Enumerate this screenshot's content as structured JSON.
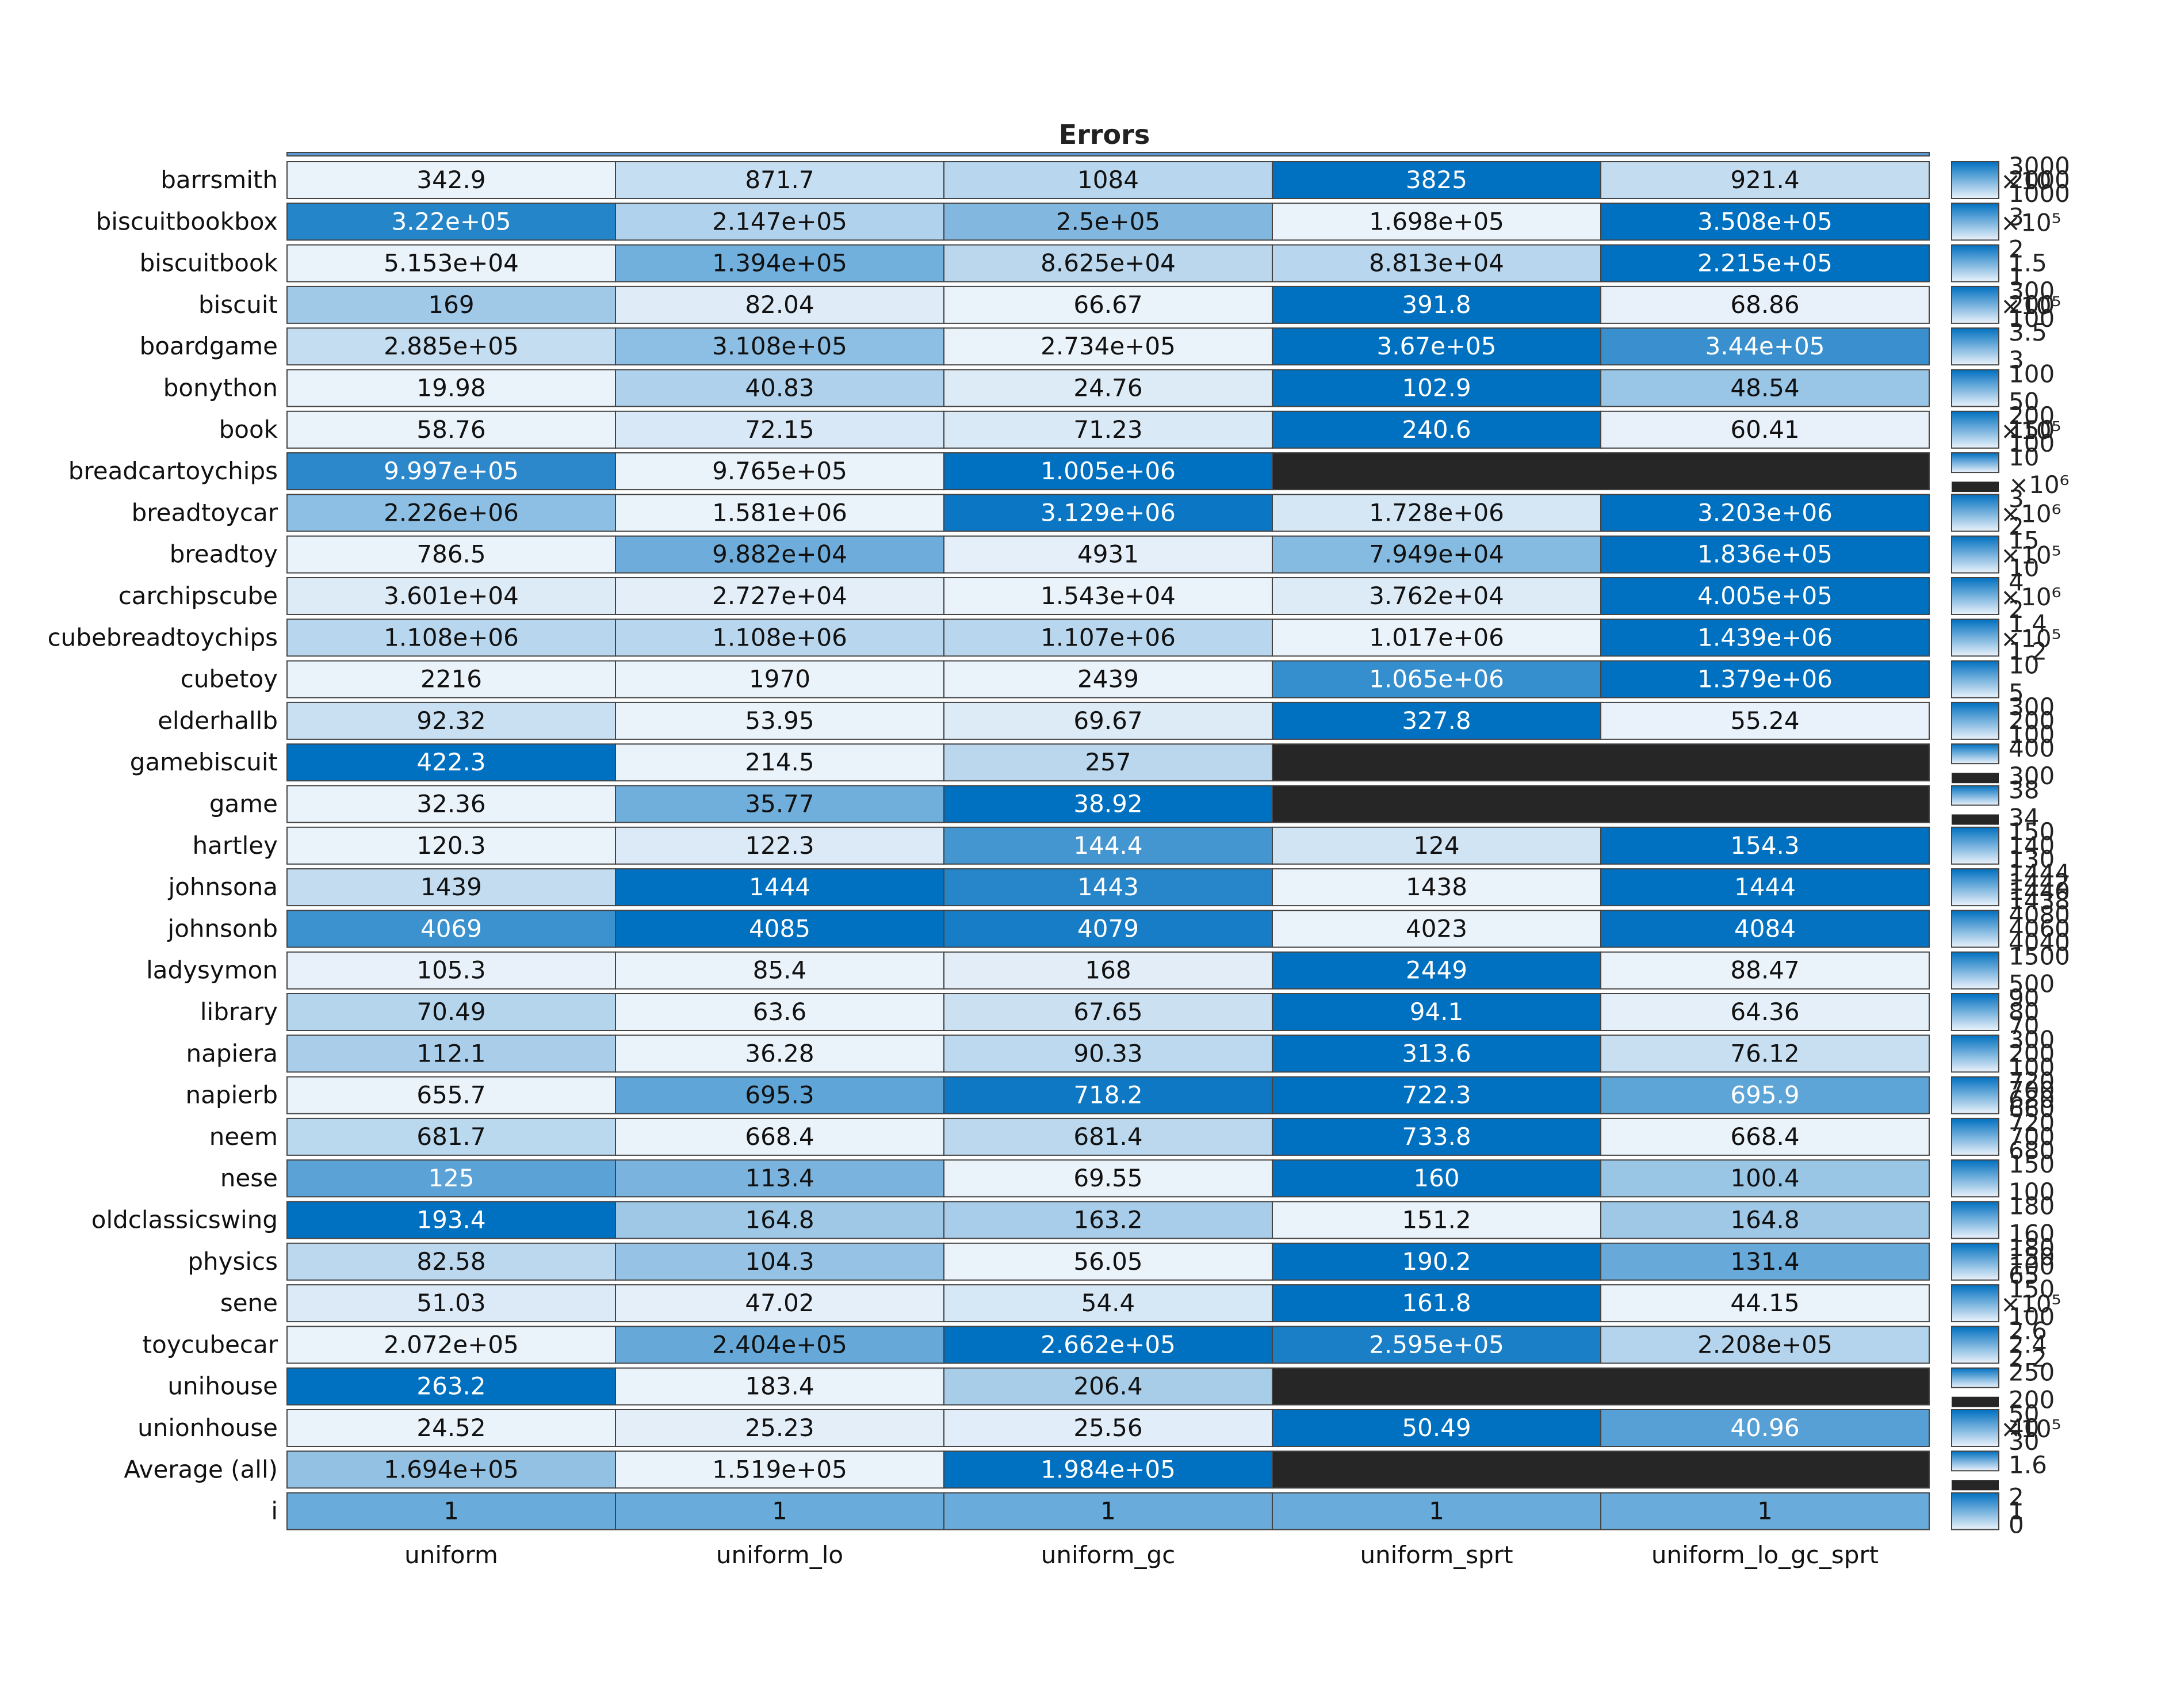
{
  "chart_data": {
    "type": "heatmap",
    "title": "Errors",
    "columns": [
      "uniform",
      "uniform_lo",
      "uniform_gc",
      "uniform_sprt",
      "uniform_lo_gc_sprt"
    ],
    "rows": [
      {
        "name": "barrsmith",
        "values": [
          342.9,
          871.7,
          1084,
          3825,
          921.4
        ],
        "labels": [
          "342.9",
          "871.7",
          "1084",
          "3825",
          "921.4"
        ]
      },
      {
        "name": "biscuitbookbox",
        "values": [
          322000,
          214700,
          250000,
          169800,
          350800
        ],
        "labels": [
          "3.22e+05",
          "2.147e+05",
          "2.5e+05",
          "1.698e+05",
          "3.508e+05"
        ]
      },
      {
        "name": "biscuitbook",
        "values": [
          51530,
          139400,
          86250,
          88130,
          221500
        ],
        "labels": [
          "5.153e+04",
          "1.394e+05",
          "8.625e+04",
          "8.813e+04",
          "2.215e+05"
        ]
      },
      {
        "name": "biscuit",
        "values": [
          169,
          82.04,
          66.67,
          391.8,
          68.86
        ],
        "labels": [
          "169",
          "82.04",
          "66.67",
          "391.8",
          "68.86"
        ]
      },
      {
        "name": "boardgame",
        "values": [
          288500,
          310800,
          273400,
          367000,
          344000
        ],
        "labels": [
          "2.885e+05",
          "3.108e+05",
          "2.734e+05",
          "3.67e+05",
          "3.44e+05"
        ]
      },
      {
        "name": "bonython",
        "values": [
          19.98,
          40.83,
          24.76,
          102.9,
          48.54
        ],
        "labels": [
          "19.98",
          "40.83",
          "24.76",
          "102.9",
          "48.54"
        ]
      },
      {
        "name": "book",
        "values": [
          58.76,
          72.15,
          71.23,
          240.6,
          60.41
        ],
        "labels": [
          "58.76",
          "72.15",
          "71.23",
          "240.6",
          "60.41"
        ]
      },
      {
        "name": "breadcartoychips",
        "values": [
          999700,
          976500,
          1005000,
          null,
          null
        ],
        "labels": [
          "9.997e+05",
          "9.765e+05",
          "1.005e+06",
          "",
          ""
        ]
      },
      {
        "name": "breadtoycar",
        "values": [
          2226000,
          1581000,
          3129000,
          1728000,
          3203000
        ],
        "labels": [
          "2.226e+06",
          "1.581e+06",
          "3.129e+06",
          "1.728e+06",
          "3.203e+06"
        ]
      },
      {
        "name": "breadtoy",
        "values": [
          786.5,
          98820,
          4931,
          79490,
          183600
        ],
        "labels": [
          "786.5",
          "9.882e+04",
          "4931",
          "7.949e+04",
          "1.836e+05"
        ]
      },
      {
        "name": "carchipscube",
        "values": [
          36010,
          27270,
          15430,
          37620,
          400500
        ],
        "labels": [
          "3.601e+04",
          "2.727e+04",
          "1.543e+04",
          "3.762e+04",
          "4.005e+05"
        ]
      },
      {
        "name": "cubebreadtoychips",
        "values": [
          1108000,
          1108000,
          1107000,
          1017000,
          1439000
        ],
        "labels": [
          "1.108e+06",
          "1.108e+06",
          "1.107e+06",
          "1.017e+06",
          "1.439e+06"
        ]
      },
      {
        "name": "cubetoy",
        "values": [
          2216,
          1970,
          2439,
          1065000,
          1379000
        ],
        "labels": [
          "2216",
          "1970",
          "2439",
          "1.065e+06",
          "1.379e+06"
        ]
      },
      {
        "name": "elderhallb",
        "values": [
          92.32,
          53.95,
          69.67,
          327.8,
          55.24
        ],
        "labels": [
          "92.32",
          "53.95",
          "69.67",
          "327.8",
          "55.24"
        ]
      },
      {
        "name": "gamebiscuit",
        "values": [
          422.3,
          214.5,
          257,
          null,
          null
        ],
        "labels": [
          "422.3",
          "214.5",
          "257",
          "",
          ""
        ]
      },
      {
        "name": "game",
        "values": [
          32.36,
          35.77,
          38.92,
          null,
          null
        ],
        "labels": [
          "32.36",
          "35.77",
          "38.92",
          "",
          ""
        ]
      },
      {
        "name": "hartley",
        "values": [
          120.3,
          122.3,
          144.4,
          124,
          154.3
        ],
        "labels": [
          "120.3",
          "122.3",
          "144.4",
          "124",
          "154.3"
        ]
      },
      {
        "name": "johnsona",
        "values": [
          1439,
          1444,
          1443,
          1438,
          1444
        ],
        "labels": [
          "1439",
          "1444",
          "1443",
          "1438",
          "1444"
        ]
      },
      {
        "name": "johnsonb",
        "values": [
          4069,
          4085,
          4079,
          4023,
          4084
        ],
        "labels": [
          "4069",
          "4085",
          "4079",
          "4023",
          "4084"
        ]
      },
      {
        "name": "ladysymon",
        "values": [
          105.3,
          85.4,
          168,
          2449,
          88.47
        ],
        "labels": [
          "105.3",
          "85.4",
          "168",
          "2449",
          "88.47"
        ]
      },
      {
        "name": "library",
        "values": [
          70.49,
          63.6,
          67.65,
          94.1,
          64.36
        ],
        "labels": [
          "70.49",
          "63.6",
          "67.65",
          "94.1",
          "64.36"
        ]
      },
      {
        "name": "napiera",
        "values": [
          112.1,
          36.28,
          90.33,
          313.6,
          76.12
        ],
        "labels": [
          "112.1",
          "36.28",
          "90.33",
          "313.6",
          "76.12"
        ]
      },
      {
        "name": "napierb",
        "values": [
          655.7,
          695.3,
          718.2,
          722.3,
          695.9
        ],
        "labels": [
          "655.7",
          "695.3",
          "718.2",
          "722.3",
          "695.9"
        ]
      },
      {
        "name": "neem",
        "values": [
          681.7,
          668.4,
          681.4,
          733.8,
          668.4
        ],
        "labels": [
          "681.7",
          "668.4",
          "681.4",
          "733.8",
          "668.4"
        ]
      },
      {
        "name": "nese",
        "values": [
          125,
          113.4,
          69.55,
          160,
          100.4
        ],
        "labels": [
          "125",
          "113.4",
          "69.55",
          "160",
          "100.4"
        ]
      },
      {
        "name": "oldclassicswing",
        "values": [
          193.4,
          164.8,
          163.2,
          151.2,
          164.8
        ],
        "labels": [
          "193.4",
          "164.8",
          "163.2",
          "151.2",
          "164.8"
        ]
      },
      {
        "name": "physics",
        "values": [
          82.58,
          104.3,
          56.05,
          190.2,
          131.4
        ],
        "labels": [
          "82.58",
          "104.3",
          "56.05",
          "190.2",
          "131.4"
        ]
      },
      {
        "name": "sene",
        "values": [
          51.03,
          47.02,
          54.4,
          161.8,
          44.15
        ],
        "labels": [
          "51.03",
          "47.02",
          "54.4",
          "161.8",
          "44.15"
        ]
      },
      {
        "name": "toycubecar",
        "values": [
          207200,
          240400,
          266200,
          259500,
          220800
        ],
        "labels": [
          "2.072e+05",
          "2.404e+05",
          "2.662e+05",
          "2.595e+05",
          "2.208e+05"
        ]
      },
      {
        "name": "unihouse",
        "values": [
          263.2,
          183.4,
          206.4,
          null,
          null
        ],
        "labels": [
          "263.2",
          "183.4",
          "206.4",
          "",
          ""
        ]
      },
      {
        "name": "unionhouse",
        "values": [
          24.52,
          25.23,
          25.56,
          50.49,
          40.96
        ],
        "labels": [
          "24.52",
          "25.23",
          "25.56",
          "50.49",
          "40.96"
        ]
      },
      {
        "name": "Average (all)",
        "values": [
          169400,
          151900,
          198400,
          null,
          null
        ],
        "labels": [
          "1.694e+05",
          "1.519e+05",
          "1.984e+05",
          "",
          ""
        ]
      },
      {
        "name": "i",
        "values": [
          1,
          1,
          1,
          1,
          1
        ],
        "labels": [
          "1",
          "1",
          "1",
          "1",
          "1"
        ]
      }
    ],
    "colorbars": [
      {
        "ticks": [
          "3000",
          "2000",
          "1000"
        ],
        "exp": "×10"
      },
      {
        "ticks": [
          "3"
        ],
        "exp": "×10⁵"
      },
      {
        "ticks": [
          "2",
          "1.5",
          "1"
        ],
        "exp": ""
      },
      {
        "ticks": [
          "300",
          "200",
          "100"
        ],
        "exp": "×10⁵"
      },
      {
        "ticks": [
          "3.5",
          "3"
        ],
        "exp": ""
      },
      {
        "ticks": [
          "100",
          "50"
        ],
        "exp": ""
      },
      {
        "ticks": [
          "200",
          "150",
          "100"
        ],
        "exp": "×10⁵"
      },
      {
        "ticks": [
          "10",
          "×10⁶"
        ],
        "exp": ""
      },
      {
        "ticks": [
          "3",
          "2"
        ],
        "exp": "×10⁶"
      },
      {
        "ticks": [
          "15",
          "10"
        ],
        "exp": "×10⁵"
      },
      {
        "ticks": [
          "4",
          "2"
        ],
        "exp": "×10⁶"
      },
      {
        "ticks": [
          "1.4",
          "1.2"
        ],
        "exp": "×10⁵"
      },
      {
        "ticks": [
          "10",
          "5"
        ],
        "exp": ""
      },
      {
        "ticks": [
          "300",
          "200",
          "100"
        ],
        "exp": ""
      },
      {
        "ticks": [
          "400",
          "300"
        ],
        "exp": ""
      },
      {
        "ticks": [
          "38",
          "34"
        ],
        "exp": ""
      },
      {
        "ticks": [
          "150",
          "140",
          "130"
        ],
        "exp": ""
      },
      {
        "ticks": [
          "1444",
          "1442",
          "1440",
          "1438"
        ],
        "exp": ""
      },
      {
        "ticks": [
          "4080",
          "4060",
          "4040"
        ],
        "exp": ""
      },
      {
        "ticks": [
          "1500",
          "500"
        ],
        "exp": ""
      },
      {
        "ticks": [
          "90",
          "80",
          "70"
        ],
        "exp": ""
      },
      {
        "ticks": [
          "300",
          "200",
          "100"
        ],
        "exp": ""
      },
      {
        "ticks": [
          "720",
          "700",
          "680",
          "660"
        ],
        "exp": ""
      },
      {
        "ticks": [
          "720",
          "700",
          "680"
        ],
        "exp": ""
      },
      {
        "ticks": [
          "150",
          "100"
        ],
        "exp": ""
      },
      {
        "ticks": [
          "180",
          "160"
        ],
        "exp": ""
      },
      {
        "ticks": [
          "180",
          "150",
          "100",
          "65"
        ],
        "exp": ""
      },
      {
        "ticks": [
          "150",
          "100"
        ],
        "exp": "×10⁵"
      },
      {
        "ticks": [
          "2.6",
          "2.4",
          "2.2"
        ],
        "exp": ""
      },
      {
        "ticks": [
          "250",
          "200"
        ],
        "exp": ""
      },
      {
        "ticks": [
          "50",
          "40",
          "30"
        ],
        "exp": "×10⁵"
      },
      {
        "ticks": [
          "1.6"
        ],
        "exp": ""
      },
      {
        "ticks": [
          "2",
          "1",
          "0"
        ],
        "exp": ""
      }
    ],
    "colors": {
      "low": "#eaf2fa",
      "high": "#0070c0",
      "missing": "#262626",
      "grid": "#444444"
    }
  }
}
